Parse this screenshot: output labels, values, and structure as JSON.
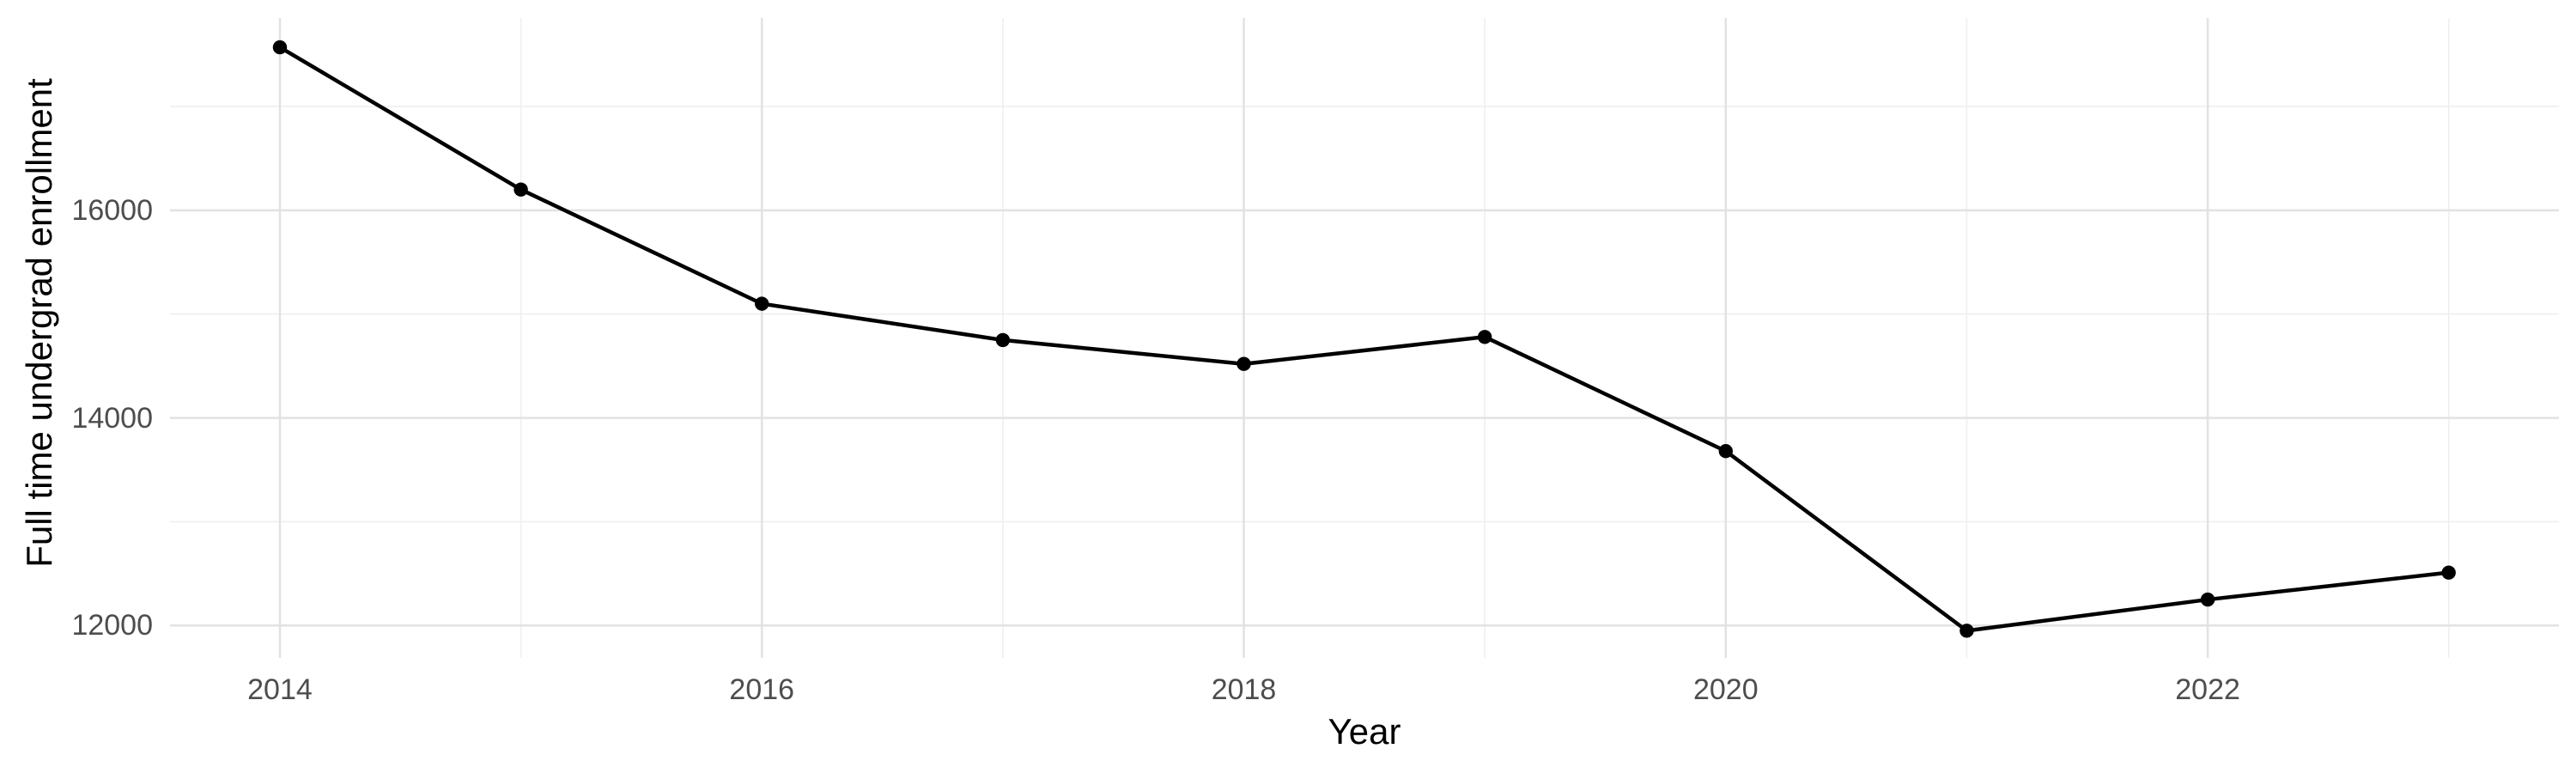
{
  "chart_data": {
    "type": "line",
    "title": "",
    "xlabel": "Year",
    "ylabel": "Full time undergrad enrollment",
    "series": [
      {
        "name": "Full time undergrad enrollment",
        "x": [
          2014,
          2015,
          2016,
          2017,
          2018,
          2019,
          2020,
          2021,
          2022,
          2023
        ],
        "values": [
          17570,
          16200,
          15100,
          14750,
          14520,
          14780,
          13680,
          11950,
          12250,
          12510
        ]
      }
    ],
    "x_major_ticks": [
      2014,
      2016,
      2018,
      2020,
      2022
    ],
    "x_major_tick_labels": [
      "2014",
      "2016",
      "2018",
      "2020",
      "2022"
    ],
    "x_minor_ticks": [
      2015,
      2017,
      2019,
      2021,
      2023
    ],
    "y_major_ticks": [
      12000,
      14000,
      16000
    ],
    "y_major_tick_labels": [
      "12000",
      "14000",
      "16000"
    ],
    "y_minor_ticks": [
      13000,
      15000,
      17000
    ],
    "xlim": [
      2013.544,
      2023.457
    ],
    "ylim": [
      11688,
      17852
    ],
    "grid": "major+minor",
    "legend": false,
    "marker": "point",
    "colors": {
      "line": "#000000",
      "point": "#000000",
      "grid_major": "#e2e2e2",
      "grid_minor": "#efefef",
      "tick_text": "#4d4d4d",
      "axis_title_text": "#000000",
      "background": "#ffffff"
    }
  }
}
